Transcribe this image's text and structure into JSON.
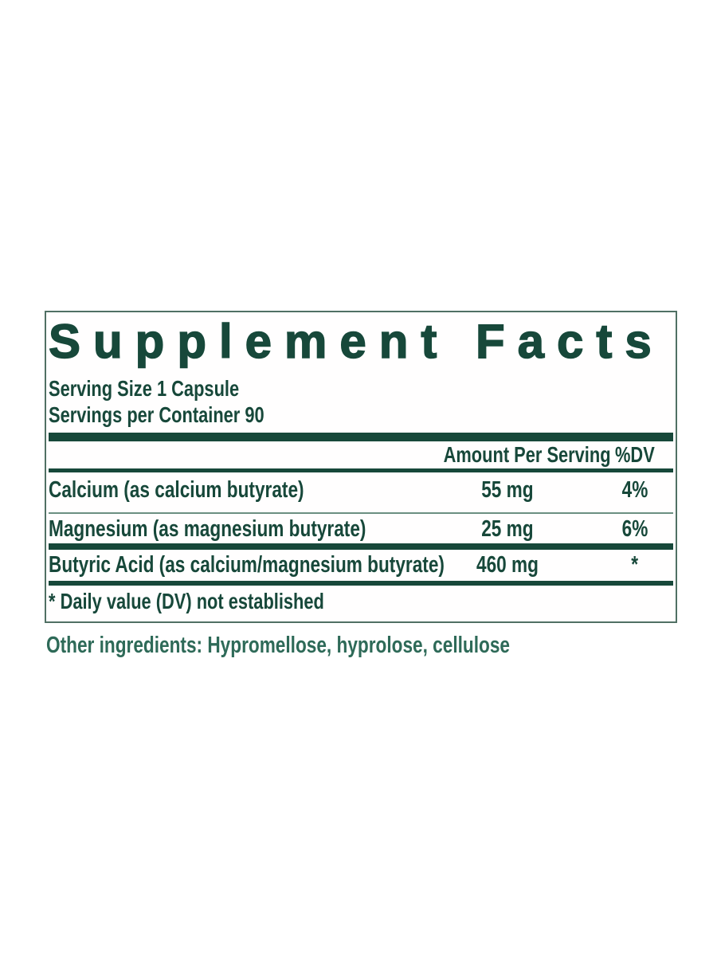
{
  "panel": {
    "title": "Supplement Facts",
    "serving_size": "Serving Size 1 Capsule",
    "servings_per_container": "Servings per Container 90"
  },
  "table": {
    "amount_header": "Amount Per Serving",
    "dv_header": "%DV",
    "rows": [
      {
        "name": "Calcium (as calcium butyrate)",
        "amount": "55 mg",
        "dv": "4%"
      },
      {
        "name": "Magnesium (as magnesium butyrate)",
        "amount": "25 mg",
        "dv": "6%"
      },
      {
        "name": "Butyric Acid (as calcium/magnesium butyrate)",
        "amount": "460 mg",
        "dv": "*"
      }
    ],
    "footnote": "* Daily value (DV) not established"
  },
  "other_ingredients": "Other ingredients: Hypromellose, hyprolose, cellulose",
  "colors": {
    "text_green": "#17483a",
    "thin_line": "#6b8f81",
    "box_border": "#507064",
    "other_text": "#2e6a58"
  }
}
